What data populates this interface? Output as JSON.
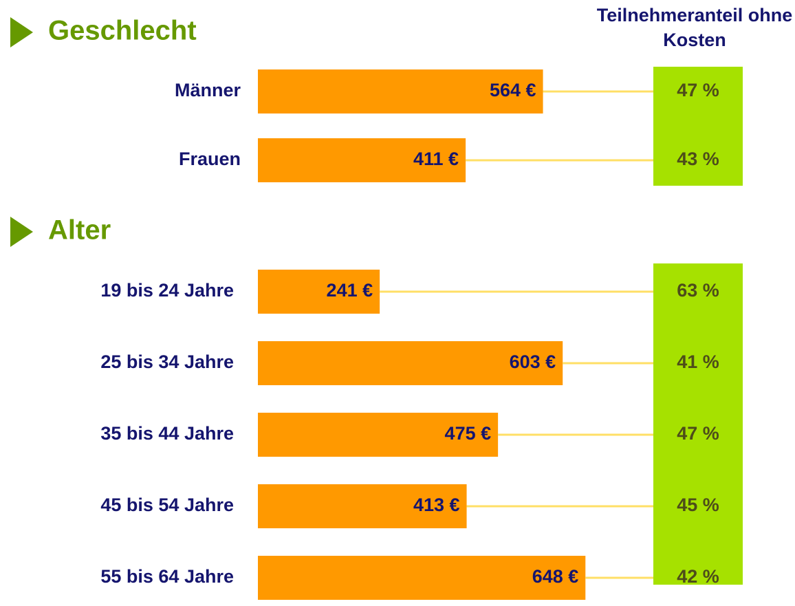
{
  "column_title": "Teilnehmeranteil ohne Kosten",
  "chart_data": [
    {
      "type": "bar",
      "title": "Geschlecht",
      "color": "#ff9900",
      "share_color": "#a6e100",
      "categories": [
        "Männer",
        "Frauen"
      ],
      "values": [
        564,
        411
      ],
      "value_labels": [
        "564 €",
        "411 €"
      ],
      "share_values": [
        47,
        43
      ],
      "share_labels": [
        "47 %",
        "43 %"
      ]
    },
    {
      "type": "bar",
      "title": "Alter",
      "color": "#ff9900",
      "share_color": "#a6e100",
      "categories": [
        "19 bis 24 Jahre",
        "25 bis 34 Jahre",
        "35 bis 44 Jahre",
        "45 bis 54 Jahre",
        "55 bis 64 Jahre"
      ],
      "values": [
        241,
        603,
        475,
        413,
        648
      ],
      "value_labels": [
        "241 €",
        "603 €",
        "475 €",
        "413 €",
        "648 €"
      ],
      "share_values": [
        63,
        41,
        47,
        45,
        42
      ],
      "share_labels": [
        "63 %",
        "41 %",
        "47 %",
        "45 %",
        "42 %"
      ]
    }
  ]
}
